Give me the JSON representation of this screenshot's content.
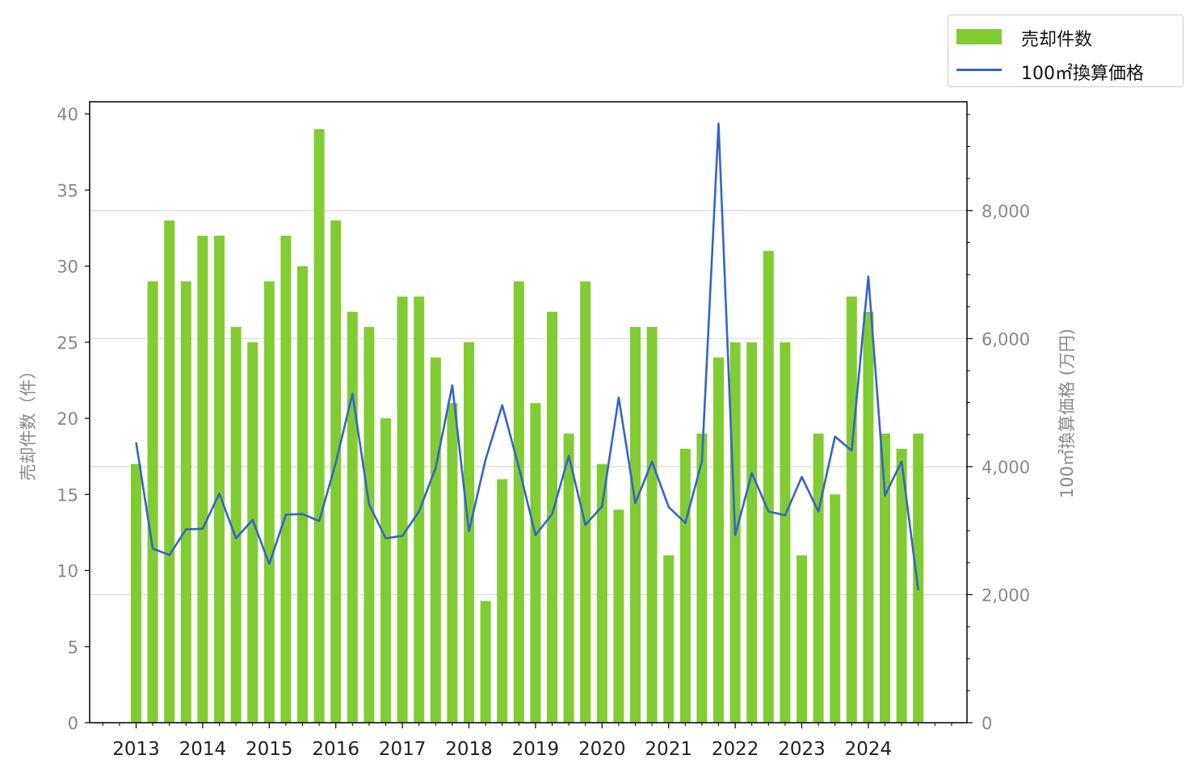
{
  "chart_data": {
    "type": "bar",
    "x_axis": {
      "tick_labels": [
        "2013",
        "2014",
        "2015",
        "2016",
        "2017",
        "2018",
        "2019",
        "2020",
        "2021",
        "2022",
        "2023",
        "2024"
      ]
    },
    "y_left": {
      "label": "売却件数（件）",
      "ylim": [
        0,
        40.8
      ],
      "ticks": [
        0,
        5,
        10,
        15,
        20,
        25,
        30,
        35,
        40
      ],
      "tick_labels": [
        "0",
        "5",
        "10",
        "15",
        "20",
        "25",
        "30",
        "35",
        "40"
      ]
    },
    "y_right": {
      "label": "100㎡換算価格 (万円)",
      "ylim": [
        0,
        9700
      ],
      "ticks": [
        0,
        2000,
        4000,
        6000,
        8000
      ],
      "tick_labels": [
        "0",
        "2,000",
        "4,000",
        "6,000",
        "8,000"
      ]
    },
    "grid": "horizontal (right axis)",
    "legend_position": "top-right, outside",
    "colors": {
      "bars": "#82cc33",
      "line": "#3564c7"
    },
    "series": [
      {
        "name": "売却件数",
        "type": "bar",
        "axis": "left",
        "values": [
          17,
          29,
          33,
          29,
          32,
          32,
          26,
          25,
          29,
          32,
          30,
          39,
          33,
          27,
          26,
          20,
          28,
          28,
          24,
          21,
          25,
          8,
          16,
          29,
          21,
          27,
          19,
          29,
          17,
          14,
          26,
          26,
          11,
          18,
          19,
          24,
          25,
          25,
          31,
          25,
          11,
          19,
          15,
          28,
          27,
          19,
          18,
          19
        ]
      },
      {
        "name": "100㎡換算価格",
        "type": "line",
        "axis": "right",
        "values": [
          4380,
          2720,
          2620,
          3020,
          3030,
          3580,
          2880,
          3170,
          2480,
          3250,
          3260,
          3150,
          4060,
          5140,
          3410,
          2880,
          2920,
          3300,
          3980,
          5270,
          2990,
          4110,
          4960,
          3990,
          2930,
          3260,
          4170,
          3090,
          3380,
          5080,
          3430,
          4080,
          3370,
          3120,
          4080,
          9360,
          2930,
          3900,
          3300,
          3240,
          3840,
          3300,
          4470,
          4250,
          6970,
          3550,
          4080,
          2070
        ]
      }
    ]
  },
  "legend": {
    "bar_label": "売却件数",
    "line_label": "100㎡換算価格"
  }
}
